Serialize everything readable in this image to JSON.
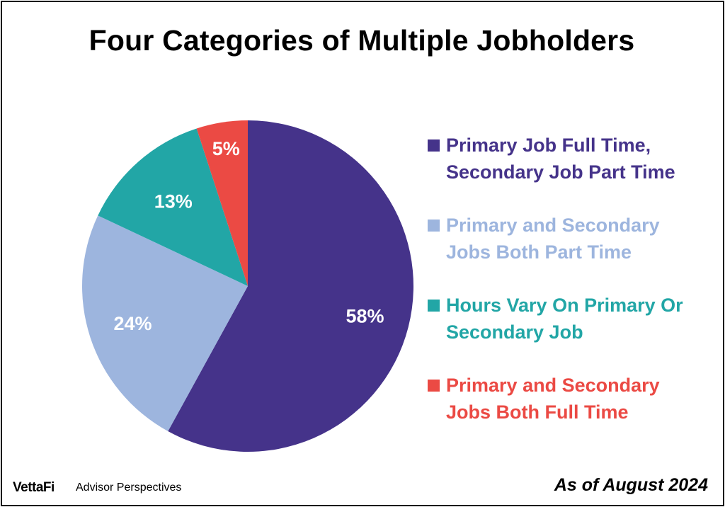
{
  "title": "Four Categories of Multiple Jobholders",
  "footer": {
    "logo": "VettaFi",
    "brand": "Advisor Perspectives",
    "date_note": "As of August 2024"
  },
  "chart_data": {
    "type": "pie",
    "title": "Four Categories of Multiple Jobholders",
    "start_angle_deg": 0,
    "direction": "clockwise",
    "legend_position": "right",
    "slices": [
      {
        "label": "Primary Job Full Time, Secondary Job Part Time",
        "label_lines": [
          "Primary Job Full Time,",
          "Secondary Job Part Time"
        ],
        "value": 58,
        "value_label": "58%",
        "color": "#45338a",
        "label_color": "#ffffff"
      },
      {
        "label": "Primary and Secondary Jobs Both Part Time",
        "label_lines": [
          "Primary and Secondary",
          "Jobs Both Part Time"
        ],
        "value": 24,
        "value_label": "24%",
        "color": "#9db5de",
        "label_color": "#ffffff"
      },
      {
        "label": "Hours Vary On Primary Or Secondary Job",
        "label_lines": [
          "Hours Vary On Primary Or",
          "Secondary Job"
        ],
        "value": 13,
        "value_label": "13%",
        "color": "#22a6a6",
        "label_color": "#ffffff"
      },
      {
        "label": "Primary and Secondary Jobs Both Full Time",
        "label_lines": [
          "Primary and Secondary",
          "Jobs Both Full Time"
        ],
        "value": 5,
        "value_label": "5%",
        "color": "#eb4a44",
        "label_color": "#ffffff"
      }
    ]
  }
}
